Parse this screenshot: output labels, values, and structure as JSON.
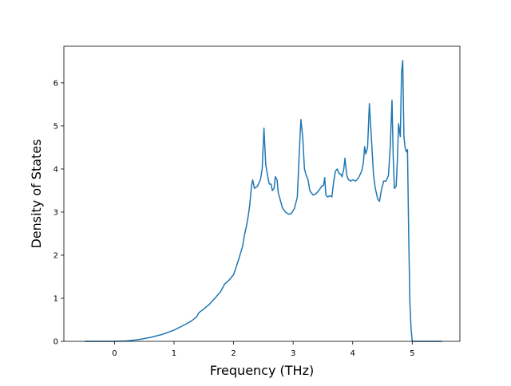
{
  "chart_data": {
    "type": "line",
    "xlabel": "Frequency (THz)",
    "ylabel": "Density of States",
    "xlim": [
      -0.85,
      5.8
    ],
    "ylim": [
      0,
      6.85
    ],
    "grid": false,
    "xticks": [
      0,
      1,
      2,
      3,
      4,
      5
    ],
    "yticks": [
      0,
      1,
      2,
      3,
      4,
      5,
      6
    ],
    "x_tick_labels": [
      "0",
      "1",
      "2",
      "3",
      "4",
      "5"
    ],
    "y_tick_labels": [
      "0",
      "1",
      "2",
      "3",
      "4",
      "5",
      "6"
    ],
    "series": [
      {
        "color": "#1f77b4",
        "points": [
          [
            -0.5,
            0
          ],
          [
            0.0,
            0
          ],
          [
            0.2,
            0.01
          ],
          [
            0.4,
            0.04
          ],
          [
            0.6,
            0.09
          ],
          [
            0.8,
            0.16
          ],
          [
            1.0,
            0.26
          ],
          [
            1.2,
            0.4
          ],
          [
            1.3,
            0.48
          ],
          [
            1.38,
            0.57
          ],
          [
            1.42,
            0.67
          ],
          [
            1.5,
            0.75
          ],
          [
            1.6,
            0.87
          ],
          [
            1.7,
            1.02
          ],
          [
            1.78,
            1.15
          ],
          [
            1.85,
            1.33
          ],
          [
            1.93,
            1.43
          ],
          [
            2.0,
            1.55
          ],
          [
            2.05,
            1.75
          ],
          [
            2.1,
            1.97
          ],
          [
            2.15,
            2.2
          ],
          [
            2.18,
            2.45
          ],
          [
            2.22,
            2.7
          ],
          [
            2.25,
            2.95
          ],
          [
            2.27,
            3.15
          ],
          [
            2.3,
            3.6
          ],
          [
            2.32,
            3.75
          ],
          [
            2.35,
            3.55
          ],
          [
            2.4,
            3.6
          ],
          [
            2.45,
            3.75
          ],
          [
            2.48,
            4.0
          ],
          [
            2.51,
            4.95
          ],
          [
            2.54,
            4.1
          ],
          [
            2.57,
            3.85
          ],
          [
            2.6,
            3.65
          ],
          [
            2.63,
            3.65
          ],
          [
            2.65,
            3.5
          ],
          [
            2.68,
            3.55
          ],
          [
            2.7,
            3.82
          ],
          [
            2.73,
            3.75
          ],
          [
            2.75,
            3.45
          ],
          [
            2.78,
            3.3
          ],
          [
            2.82,
            3.1
          ],
          [
            2.87,
            3.0
          ],
          [
            2.93,
            2.95
          ],
          [
            2.97,
            2.97
          ],
          [
            3.02,
            3.08
          ],
          [
            3.07,
            3.35
          ],
          [
            3.1,
            4.3
          ],
          [
            3.13,
            5.15
          ],
          [
            3.16,
            4.75
          ],
          [
            3.19,
            4.0
          ],
          [
            3.22,
            3.85
          ],
          [
            3.25,
            3.75
          ],
          [
            3.28,
            3.5
          ],
          [
            3.33,
            3.4
          ],
          [
            3.38,
            3.42
          ],
          [
            3.43,
            3.5
          ],
          [
            3.48,
            3.6
          ],
          [
            3.51,
            3.62
          ],
          [
            3.53,
            3.8
          ],
          [
            3.55,
            3.4
          ],
          [
            3.58,
            3.35
          ],
          [
            3.62,
            3.38
          ],
          [
            3.65,
            3.35
          ],
          [
            3.68,
            3.7
          ],
          [
            3.71,
            3.95
          ],
          [
            3.74,
            4.0
          ],
          [
            3.77,
            3.9
          ],
          [
            3.8,
            3.88
          ],
          [
            3.82,
            3.82
          ],
          [
            3.85,
            4.0
          ],
          [
            3.87,
            4.25
          ],
          [
            3.9,
            3.85
          ],
          [
            3.93,
            3.75
          ],
          [
            3.97,
            3.72
          ],
          [
            4.0,
            3.75
          ],
          [
            4.05,
            3.72
          ],
          [
            4.1,
            3.8
          ],
          [
            4.15,
            3.95
          ],
          [
            4.18,
            4.15
          ],
          [
            4.2,
            4.52
          ],
          [
            4.22,
            4.35
          ],
          [
            4.25,
            4.5
          ],
          [
            4.28,
            5.52
          ],
          [
            4.31,
            4.8
          ],
          [
            4.35,
            3.85
          ],
          [
            4.38,
            3.55
          ],
          [
            4.42,
            3.3
          ],
          [
            4.45,
            3.25
          ],
          [
            4.48,
            3.5
          ],
          [
            4.52,
            3.72
          ],
          [
            4.56,
            3.72
          ],
          [
            4.6,
            3.85
          ],
          [
            4.63,
            4.5
          ],
          [
            4.66,
            5.6
          ],
          [
            4.68,
            4.3
          ],
          [
            4.7,
            3.55
          ],
          [
            4.73,
            3.6
          ],
          [
            4.75,
            4.2
          ],
          [
            4.77,
            5.05
          ],
          [
            4.8,
            4.75
          ],
          [
            4.82,
            6.25
          ],
          [
            4.84,
            6.52
          ],
          [
            4.86,
            4.75
          ],
          [
            4.88,
            4.5
          ],
          [
            4.9,
            4.4
          ],
          [
            4.92,
            4.45
          ],
          [
            4.94,
            2.5
          ],
          [
            4.96,
            0.9
          ],
          [
            4.98,
            0.3
          ],
          [
            5.0,
            0
          ],
          [
            5.2,
            0
          ],
          [
            5.5,
            0
          ]
        ]
      }
    ]
  }
}
